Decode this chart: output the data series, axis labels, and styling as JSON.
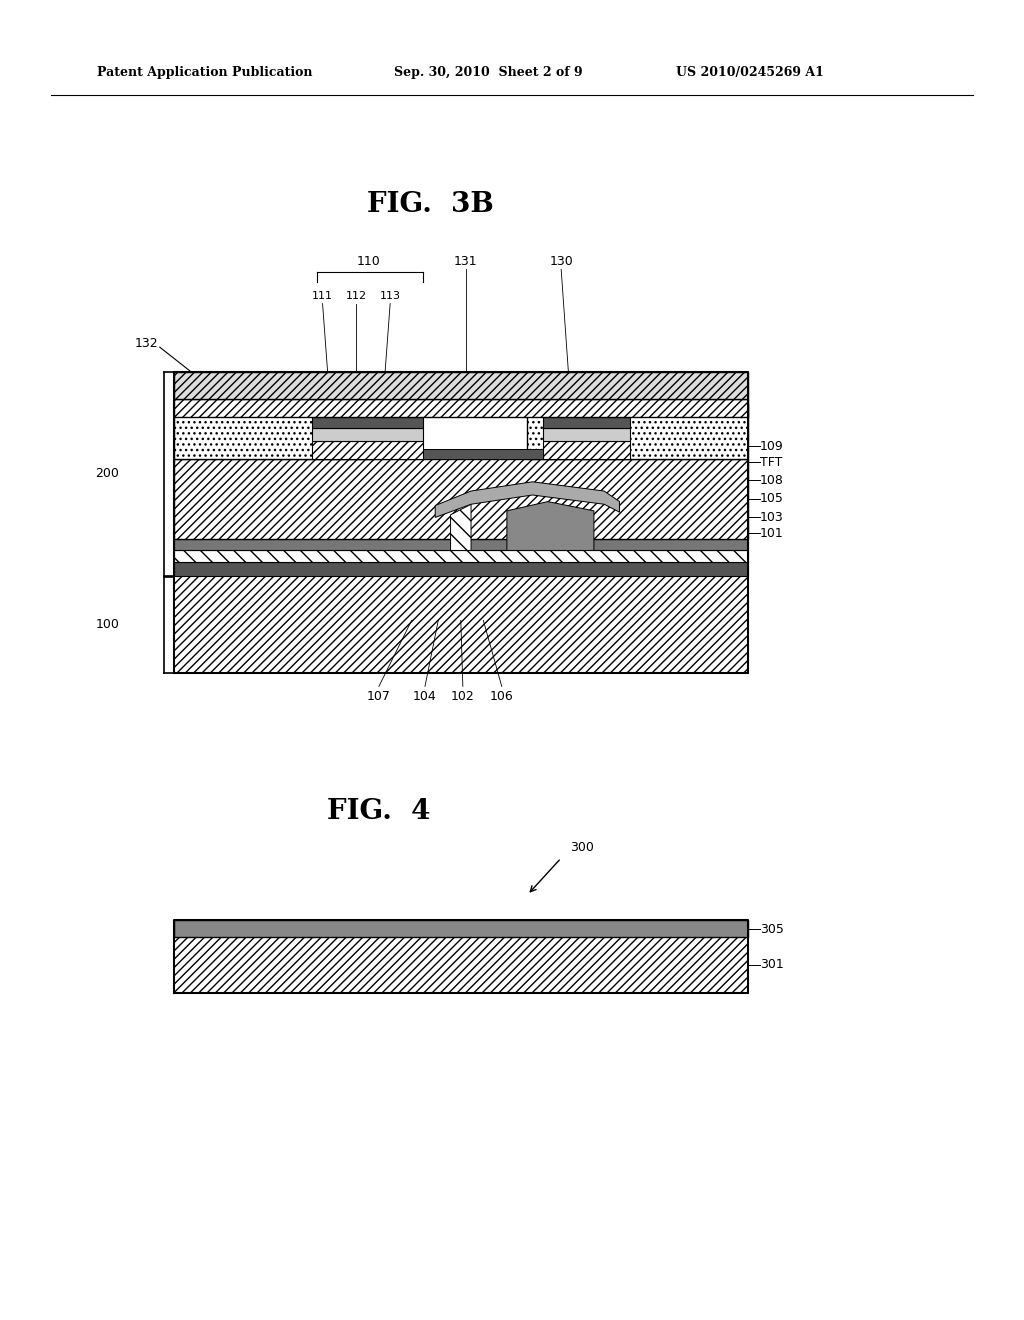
{
  "bg_color": "#ffffff",
  "header_text1": "Patent Application Publication",
  "header_text2": "Sep. 30, 2010  Sheet 2 of 9",
  "header_text3": "US 2010/0245269 A1",
  "fig3b_title": "FIG.  3B",
  "fig4_title": "FIG.  4"
}
